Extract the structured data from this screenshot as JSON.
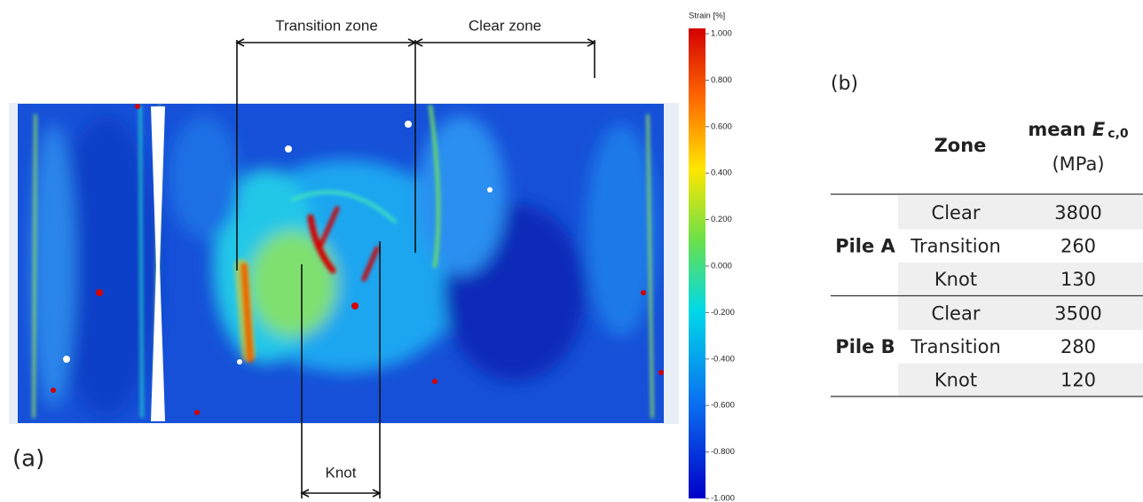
{
  "panel_a": {
    "label": "(a)",
    "annotations": {
      "transition": "Transition zone",
      "clear": "Clear zone",
      "knot": "Knot"
    },
    "colorbar": {
      "title": "Strain [%]",
      "ticks": [
        "1.000",
        "0.800",
        "0.600",
        "0.400",
        "0.200",
        "0.000",
        "-0.200",
        "-0.400",
        "-0.600",
        "-0.800",
        "-1.000"
      ]
    }
  },
  "panel_b": {
    "label": "(b)",
    "table": {
      "header": {
        "zone": "Zone",
        "mean": "mean",
        "symbol": "E",
        "subscript": "c,0",
        "unit": "(MPa)"
      },
      "groups": [
        {
          "name": "Pile A",
          "rows": [
            [
              "Clear",
              3800
            ],
            [
              "Transition",
              260
            ],
            [
              "Knot",
              130
            ]
          ]
        },
        {
          "name": "Pile B",
          "rows": [
            [
              "Clear",
              3500
            ],
            [
              "Transition",
              280
            ],
            [
              "Knot",
              120
            ]
          ]
        }
      ]
    }
  }
}
